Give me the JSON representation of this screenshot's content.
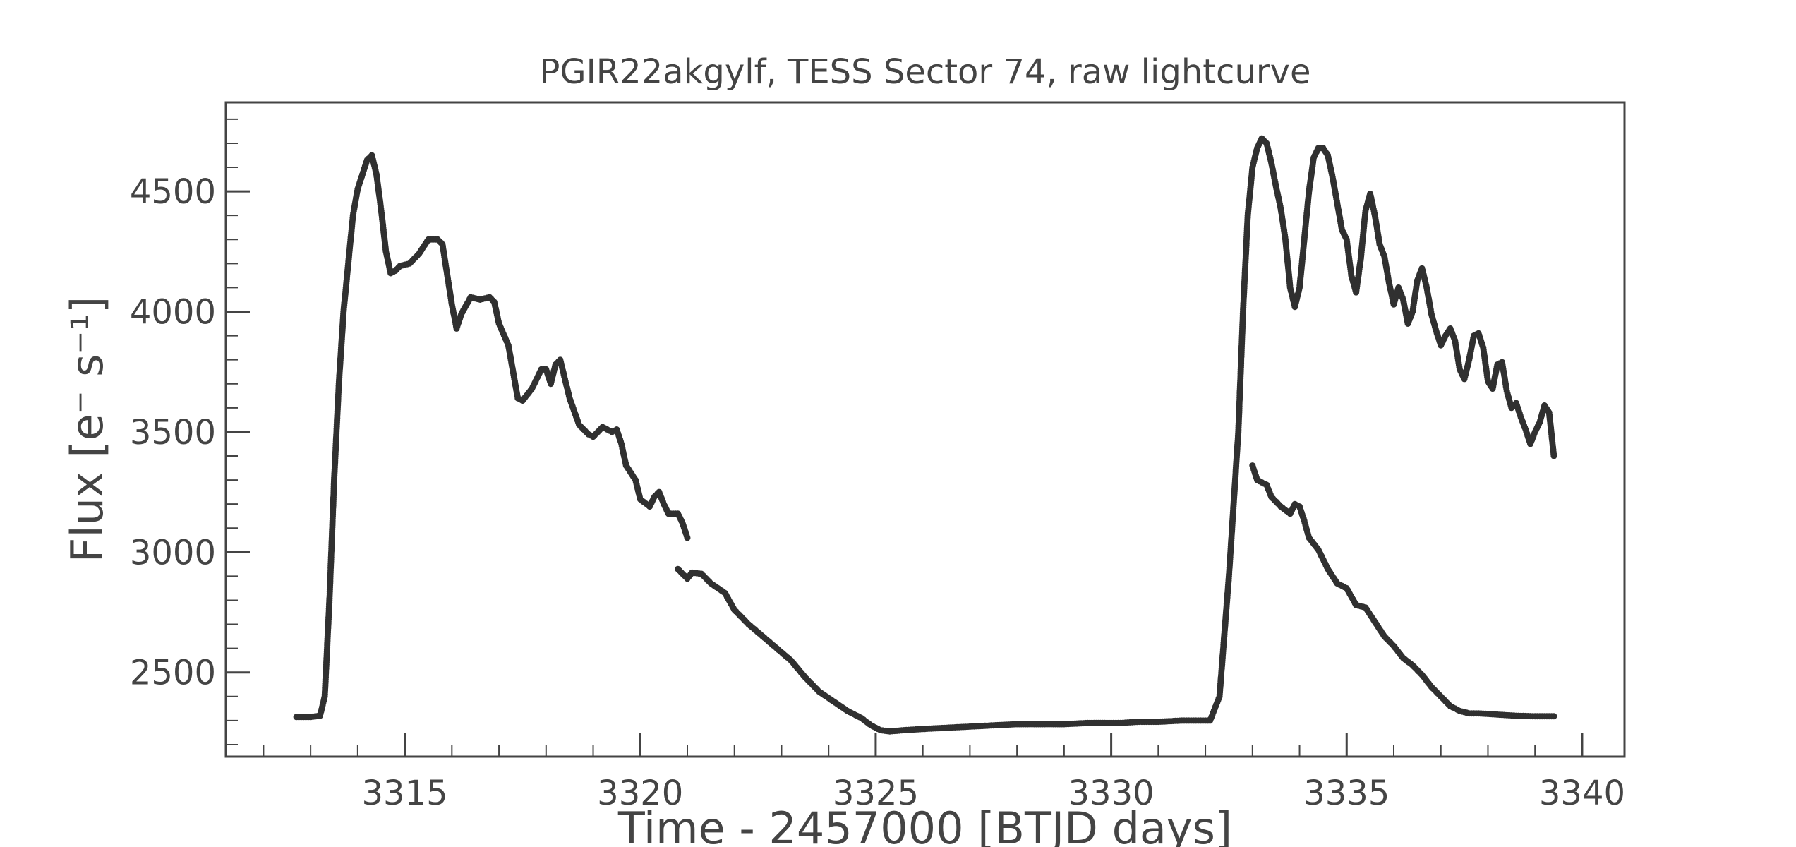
{
  "chart_data": {
    "type": "scatter",
    "title": "PGIR22akgylf, TESS Sector 74, raw lightcurve",
    "xlabel": "Time - 2457000 [BTJD days]",
    "ylabel": "Flux [e⁻ s⁻¹]",
    "xlim": [
      3311.2,
      3340.9
    ],
    "ylim": [
      2150,
      4870
    ],
    "x_ticks": [
      3315,
      3320,
      3325,
      3330,
      3335,
      3340
    ],
    "x_tick_labels": [
      "3315",
      "3320",
      "3325",
      "3330",
      "3335",
      "3340"
    ],
    "y_ticks": [
      2500,
      3000,
      3500,
      4000,
      4500
    ],
    "y_tick_labels": [
      "2500",
      "3000",
      "3500",
      "4000",
      "4500"
    ],
    "grid": false,
    "legend": "none",
    "series": [
      {
        "color": "#303030",
        "points": [
          [
            3312.7,
            2315
          ],
          [
            3313.0,
            2315
          ],
          [
            3313.2,
            2320
          ],
          [
            3313.3,
            2400
          ],
          [
            3313.4,
            2800
          ],
          [
            3313.5,
            3300
          ],
          [
            3313.6,
            3700
          ],
          [
            3313.7,
            4000
          ],
          [
            3313.8,
            4200
          ],
          [
            3313.9,
            4400
          ],
          [
            3314.0,
            4510
          ],
          [
            3314.1,
            4570
          ],
          [
            3314.2,
            4630
          ],
          [
            3314.3,
            4650
          ],
          [
            3314.4,
            4570
          ],
          [
            3314.5,
            4420
          ],
          [
            3314.6,
            4250
          ],
          [
            3314.7,
            4160
          ],
          [
            3314.8,
            4170
          ],
          [
            3314.9,
            4190
          ],
          [
            3315.1,
            4200
          ],
          [
            3315.3,
            4240
          ],
          [
            3315.5,
            4300
          ],
          [
            3315.7,
            4300
          ],
          [
            3315.8,
            4280
          ],
          [
            3316.0,
            4030
          ],
          [
            3316.1,
            3930
          ],
          [
            3316.2,
            3990
          ],
          [
            3316.4,
            4060
          ],
          [
            3316.6,
            4050
          ],
          [
            3316.8,
            4060
          ],
          [
            3316.9,
            4040
          ],
          [
            3317.0,
            3950
          ],
          [
            3317.2,
            3860
          ],
          [
            3317.4,
            3640
          ],
          [
            3317.5,
            3630
          ],
          [
            3317.7,
            3680
          ],
          [
            3317.9,
            3760
          ],
          [
            3318.0,
            3760
          ],
          [
            3318.1,
            3700
          ],
          [
            3318.2,
            3780
          ],
          [
            3318.3,
            3800
          ],
          [
            3318.4,
            3720
          ],
          [
            3318.5,
            3640
          ],
          [
            3318.7,
            3530
          ],
          [
            3318.9,
            3490
          ],
          [
            3319.0,
            3480
          ],
          [
            3319.2,
            3520
          ],
          [
            3319.4,
            3500
          ],
          [
            3319.5,
            3510
          ],
          [
            3319.6,
            3450
          ],
          [
            3319.7,
            3360
          ],
          [
            3319.9,
            3300
          ],
          [
            3320.0,
            3220
          ],
          [
            3320.2,
            3190
          ],
          [
            3320.3,
            3230
          ],
          [
            3320.4,
            3250
          ],
          [
            3320.5,
            3200
          ],
          [
            3320.6,
            3160
          ],
          [
            3320.8,
            3160
          ],
          [
            3320.9,
            3120
          ],
          [
            3321.0,
            3060
          ],
          [
            3320.8,
            2930
          ],
          [
            3321.0,
            2890
          ],
          [
            3321.1,
            2915
          ],
          [
            3321.3,
            2910
          ],
          [
            3321.5,
            2870
          ],
          [
            3321.8,
            2830
          ],
          [
            3322.0,
            2760
          ],
          [
            3322.3,
            2700
          ],
          [
            3322.6,
            2650
          ],
          [
            3322.9,
            2600
          ],
          [
            3323.2,
            2550
          ],
          [
            3323.5,
            2480
          ],
          [
            3323.8,
            2420
          ],
          [
            3324.1,
            2380
          ],
          [
            3324.4,
            2340
          ],
          [
            3324.7,
            2310
          ],
          [
            3324.9,
            2280
          ],
          [
            3325.1,
            2260
          ],
          [
            3325.3,
            2255
          ],
          [
            3325.6,
            2260
          ],
          [
            3326.0,
            2265
          ],
          [
            3326.5,
            2270
          ],
          [
            3327.0,
            2275
          ],
          [
            3327.5,
            2280
          ],
          [
            3328.0,
            2285
          ],
          [
            3328.5,
            2285
          ],
          [
            3329.0,
            2285
          ],
          [
            3329.5,
            2290
          ],
          [
            3330.0,
            2290
          ],
          [
            3330.2,
            2290
          ],
          [
            3330.6,
            2295
          ],
          [
            3331.0,
            2295
          ],
          [
            3331.5,
            2300
          ],
          [
            3331.9,
            2300
          ],
          [
            3332.1,
            2300
          ],
          [
            3332.3,
            2400
          ],
          [
            3332.5,
            2900
          ],
          [
            3332.7,
            3500
          ],
          [
            3332.8,
            4000
          ],
          [
            3332.9,
            4400
          ],
          [
            3333.0,
            4600
          ],
          [
            3333.1,
            4680
          ],
          [
            3333.2,
            4720
          ],
          [
            3333.3,
            4700
          ],
          [
            3333.4,
            4620
          ],
          [
            3333.5,
            4520
          ],
          [
            3333.6,
            4430
          ],
          [
            3333.7,
            4300
          ],
          [
            3333.8,
            4100
          ],
          [
            3333.9,
            4020
          ],
          [
            3334.0,
            4100
          ],
          [
            3334.1,
            4300
          ],
          [
            3334.2,
            4500
          ],
          [
            3334.3,
            4640
          ],
          [
            3334.4,
            4680
          ],
          [
            3334.5,
            4680
          ],
          [
            3334.6,
            4650
          ],
          [
            3334.7,
            4560
          ],
          [
            3334.8,
            4450
          ],
          [
            3334.9,
            4340
          ],
          [
            3335.0,
            4300
          ],
          [
            3335.1,
            4150
          ],
          [
            3335.2,
            4080
          ],
          [
            3335.3,
            4220
          ],
          [
            3335.4,
            4420
          ],
          [
            3335.5,
            4490
          ],
          [
            3335.6,
            4400
          ],
          [
            3335.7,
            4280
          ],
          [
            3335.8,
            4230
          ],
          [
            3335.9,
            4120
          ],
          [
            3336.0,
            4030
          ],
          [
            3336.1,
            4100
          ],
          [
            3336.2,
            4050
          ],
          [
            3336.3,
            3950
          ],
          [
            3336.4,
            4000
          ],
          [
            3336.5,
            4130
          ],
          [
            3336.6,
            4180
          ],
          [
            3336.7,
            4100
          ],
          [
            3336.8,
            3990
          ],
          [
            3336.9,
            3920
          ],
          [
            3337.0,
            3860
          ],
          [
            3337.1,
            3900
          ],
          [
            3337.2,
            3930
          ],
          [
            3337.3,
            3880
          ],
          [
            3337.4,
            3760
          ],
          [
            3337.5,
            3720
          ],
          [
            3337.6,
            3800
          ],
          [
            3337.7,
            3900
          ],
          [
            3337.8,
            3910
          ],
          [
            3337.9,
            3850
          ],
          [
            3338.0,
            3710
          ],
          [
            3338.1,
            3680
          ],
          [
            3338.2,
            3780
          ],
          [
            3338.3,
            3790
          ],
          [
            3338.4,
            3670
          ],
          [
            3338.5,
            3600
          ],
          [
            3338.6,
            3620
          ],
          [
            3338.7,
            3560
          ],
          [
            3338.8,
            3510
          ],
          [
            3338.9,
            3450
          ],
          [
            3339.0,
            3500
          ],
          [
            3339.1,
            3540
          ],
          [
            3339.2,
            3610
          ],
          [
            3339.3,
            3580
          ],
          [
            3339.4,
            3400
          ],
          [
            3333.0,
            3360
          ],
          [
            3333.1,
            3300
          ],
          [
            3333.3,
            3280
          ],
          [
            3333.4,
            3230
          ],
          [
            3333.6,
            3190
          ],
          [
            3333.8,
            3160
          ],
          [
            3333.9,
            3200
          ],
          [
            3334.0,
            3190
          ],
          [
            3334.1,
            3130
          ],
          [
            3334.2,
            3060
          ],
          [
            3334.4,
            3010
          ],
          [
            3334.6,
            2930
          ],
          [
            3334.8,
            2870
          ],
          [
            3335.0,
            2850
          ],
          [
            3335.2,
            2780
          ],
          [
            3335.4,
            2770
          ],
          [
            3335.6,
            2710
          ],
          [
            3335.8,
            2650
          ],
          [
            3336.0,
            2610
          ],
          [
            3336.2,
            2560
          ],
          [
            3336.4,
            2530
          ],
          [
            3336.6,
            2490
          ],
          [
            3336.8,
            2440
          ],
          [
            3337.0,
            2400
          ],
          [
            3337.2,
            2360
          ],
          [
            3337.4,
            2340
          ],
          [
            3337.6,
            2330
          ],
          [
            3337.8,
            2330
          ],
          [
            3338.2,
            2325
          ],
          [
            3338.6,
            2320
          ],
          [
            3339.0,
            2318
          ],
          [
            3339.4,
            2318
          ]
        ]
      }
    ]
  }
}
